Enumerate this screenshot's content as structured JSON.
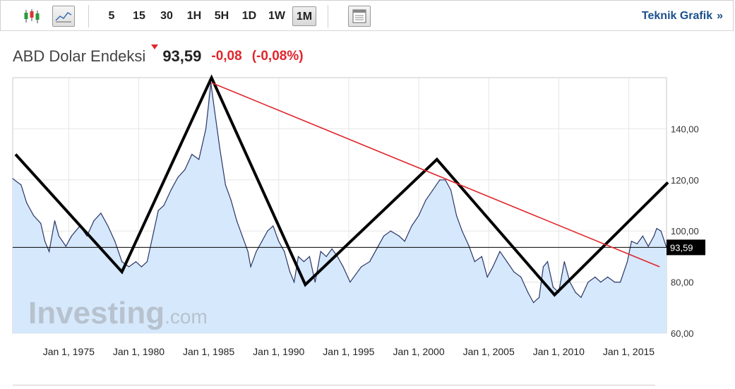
{
  "toolbar": {
    "icons": [
      "candlestick-icon",
      "area-chart-icon",
      "layout-icon"
    ],
    "periods": [
      "5",
      "15",
      "30",
      "1H",
      "5H",
      "1D",
      "1W",
      "1M"
    ],
    "active_period": "1M",
    "technical_link": "Teknik Grafik",
    "technical_chevron": "»"
  },
  "header": {
    "name": "ABD Dolar Endeksi",
    "price": "93,59",
    "change": "-0,08",
    "change_pct": "(-0,08%)"
  },
  "watermark": "Investing.com",
  "colors": {
    "area_fill": "#d6e8fb",
    "line": "#2a3566",
    "trend_red": "#e0262c",
    "drawn_black": "#000000",
    "link_blue": "#1c4f8c"
  },
  "chart_data": {
    "type": "area",
    "ylim": [
      60,
      160
    ],
    "x_range": [
      1971.0,
      2017.7
    ],
    "x_tick_labels": [
      "Jan 1, 1975",
      "Jan 1, 1980",
      "Jan 1, 1985",
      "Jan 1, 1990",
      "Jan 1, 1995",
      "Jan 1, 2000",
      "Jan 1, 2005",
      "Jan 1, 2010",
      "Jan 1, 2015"
    ],
    "x_tick_years": [
      1975,
      1980,
      1985,
      1990,
      1995,
      2000,
      2005,
      2010,
      2015
    ],
    "y_tick_labels": [
      "60,00",
      "80,00",
      "100,00",
      "120,00",
      "140,00"
    ],
    "y_tick_values": [
      60,
      80,
      100,
      120,
      140
    ],
    "current_value": 93.59,
    "current_label": "93,59",
    "series": [
      {
        "points": [
          [
            1971.0,
            120.5
          ],
          [
            1971.6,
            118
          ],
          [
            1972.0,
            111
          ],
          [
            1972.5,
            106
          ],
          [
            1973.0,
            103
          ],
          [
            1973.3,
            96
          ],
          [
            1973.6,
            92
          ],
          [
            1974.0,
            104
          ],
          [
            1974.3,
            98
          ],
          [
            1974.8,
            94
          ],
          [
            1975.2,
            98
          ],
          [
            1975.8,
            102
          ],
          [
            1976.3,
            98
          ],
          [
            1976.8,
            104
          ],
          [
            1977.3,
            107
          ],
          [
            1977.8,
            102
          ],
          [
            1978.3,
            96
          ],
          [
            1978.8,
            88
          ],
          [
            1979.3,
            86
          ],
          [
            1979.8,
            88
          ],
          [
            1980.2,
            86
          ],
          [
            1980.6,
            88
          ],
          [
            1981.0,
            98
          ],
          [
            1981.4,
            108
          ],
          [
            1981.8,
            110
          ],
          [
            1982.3,
            116
          ],
          [
            1982.8,
            121
          ],
          [
            1983.3,
            124
          ],
          [
            1983.8,
            130
          ],
          [
            1984.3,
            128
          ],
          [
            1984.8,
            140
          ],
          [
            1985.0,
            150
          ],
          [
            1985.15,
            158
          ],
          [
            1985.4,
            148
          ],
          [
            1985.8,
            132
          ],
          [
            1986.2,
            118
          ],
          [
            1986.6,
            112
          ],
          [
            1987.0,
            104
          ],
          [
            1987.4,
            98
          ],
          [
            1987.8,
            92
          ],
          [
            1988.0,
            86
          ],
          [
            1988.4,
            92
          ],
          [
            1988.8,
            96
          ],
          [
            1989.2,
            100
          ],
          [
            1989.6,
            102
          ],
          [
            1990.0,
            96
          ],
          [
            1990.4,
            92
          ],
          [
            1990.8,
            84
          ],
          [
            1991.1,
            80
          ],
          [
            1991.4,
            90
          ],
          [
            1991.8,
            88
          ],
          [
            1992.2,
            90
          ],
          [
            1992.6,
            80
          ],
          [
            1993.0,
            92
          ],
          [
            1993.4,
            90
          ],
          [
            1993.8,
            93
          ],
          [
            1994.2,
            90
          ],
          [
            1994.6,
            86
          ],
          [
            1995.1,
            80
          ],
          [
            1995.5,
            83
          ],
          [
            1995.9,
            86
          ],
          [
            1996.5,
            88
          ],
          [
            1997.1,
            94
          ],
          [
            1997.5,
            98
          ],
          [
            1998.0,
            100
          ],
          [
            1998.6,
            98
          ],
          [
            1999.0,
            96
          ],
          [
            1999.5,
            102
          ],
          [
            2000.0,
            106
          ],
          [
            2000.5,
            112
          ],
          [
            2001.0,
            116
          ],
          [
            2001.5,
            120
          ],
          [
            2001.9,
            120
          ],
          [
            2002.3,
            116
          ],
          [
            2002.7,
            106
          ],
          [
            2003.1,
            100
          ],
          [
            2003.6,
            94
          ],
          [
            2004.0,
            88
          ],
          [
            2004.5,
            90
          ],
          [
            2004.9,
            82
          ],
          [
            2005.3,
            86
          ],
          [
            2005.8,
            92
          ],
          [
            2006.3,
            88
          ],
          [
            2006.8,
            84
          ],
          [
            2007.3,
            82
          ],
          [
            2007.8,
            76
          ],
          [
            2008.2,
            72
          ],
          [
            2008.6,
            74
          ],
          [
            2008.9,
            86
          ],
          [
            2009.2,
            88
          ],
          [
            2009.6,
            78
          ],
          [
            2010.0,
            76
          ],
          [
            2010.4,
            88
          ],
          [
            2010.8,
            80
          ],
          [
            2011.2,
            76
          ],
          [
            2011.6,
            74
          ],
          [
            2012.1,
            80
          ],
          [
            2012.6,
            82
          ],
          [
            2013.0,
            80
          ],
          [
            2013.5,
            82
          ],
          [
            2014.0,
            80
          ],
          [
            2014.4,
            80
          ],
          [
            2014.9,
            88
          ],
          [
            2015.2,
            96
          ],
          [
            2015.6,
            95
          ],
          [
            2016.0,
            98
          ],
          [
            2016.4,
            94
          ],
          [
            2016.8,
            98
          ],
          [
            2017.0,
            101
          ],
          [
            2017.3,
            100
          ],
          [
            2017.7,
            93.6
          ]
        ]
      }
    ],
    "drawn_lines": [
      {
        "color": "black",
        "points": [
          [
            1971.2,
            130
          ],
          [
            1978.8,
            84
          ],
          [
            1985.2,
            160
          ],
          [
            1991.9,
            79
          ],
          [
            2001.3,
            128
          ],
          [
            2009.7,
            75
          ],
          [
            2017.8,
            119
          ]
        ]
      },
      {
        "color": "red",
        "points": [
          [
            1985.2,
            158
          ],
          [
            2017.2,
            86
          ]
        ]
      }
    ]
  }
}
